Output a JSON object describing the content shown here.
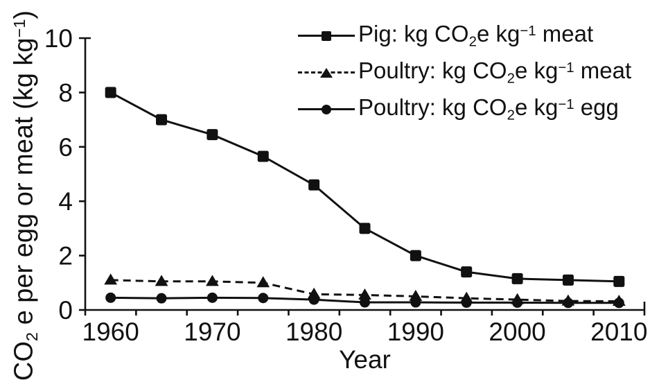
{
  "figure": {
    "background": "#ffffff",
    "ink_color": "#111111"
  },
  "chart_data": {
    "type": "line",
    "title": "",
    "xlabel": "Year",
    "ylabel": "CO2 e per egg or meat (kg kg−1)",
    "ylabel_parts": {
      "pre": "CO",
      "sub": "2",
      "mid": " e per egg or meat (kg kg",
      "sup": "−1",
      "post": ")"
    },
    "categories": [
      1960,
      1965,
      1970,
      1975,
      1980,
      1985,
      1990,
      1995,
      2000,
      2005,
      2010
    ],
    "x_tick_labels": [
      "1960",
      "1970",
      "1980",
      "1990",
      "2000",
      "2010"
    ],
    "y_ticks": [
      0,
      2,
      4,
      6,
      8,
      10
    ],
    "ylim": [
      0,
      10
    ],
    "grid": false,
    "legend_position": "top-right",
    "series": [
      {
        "name": "Pig: kg CO2e kg−1 meat",
        "marker": "square",
        "line": "solid",
        "values": [
          8.0,
          7.0,
          6.45,
          5.65,
          4.6,
          3.0,
          2.0,
          1.4,
          1.15,
          1.1,
          1.05
        ],
        "label_parts": {
          "pre": "Pig: kg CO",
          "sub": "2",
          "mid": "e kg",
          "sup": "−1",
          "post": " meat"
        }
      },
      {
        "name": "Poultry: kg CO2e kg−1 meat",
        "marker": "triangle",
        "line": "dashed",
        "values": [
          1.1,
          1.05,
          1.05,
          1.0,
          0.58,
          0.55,
          0.5,
          0.43,
          0.38,
          0.33,
          0.32
        ],
        "label_parts": {
          "pre": "Poultry: kg CO",
          "sub": "2",
          "mid": "e kg",
          "sup": "−1",
          "post": " meat"
        }
      },
      {
        "name": "Poultry: kg CO2e kg−1 egg",
        "marker": "circle",
        "line": "solid",
        "values": [
          0.45,
          0.43,
          0.45,
          0.44,
          0.38,
          0.28,
          0.28,
          0.27,
          0.27,
          0.26,
          0.26
        ],
        "label_parts": {
          "pre": "Poultry: kg CO",
          "sub": "2",
          "mid": "e kg",
          "sup": "−1",
          "post": " egg"
        }
      }
    ]
  }
}
